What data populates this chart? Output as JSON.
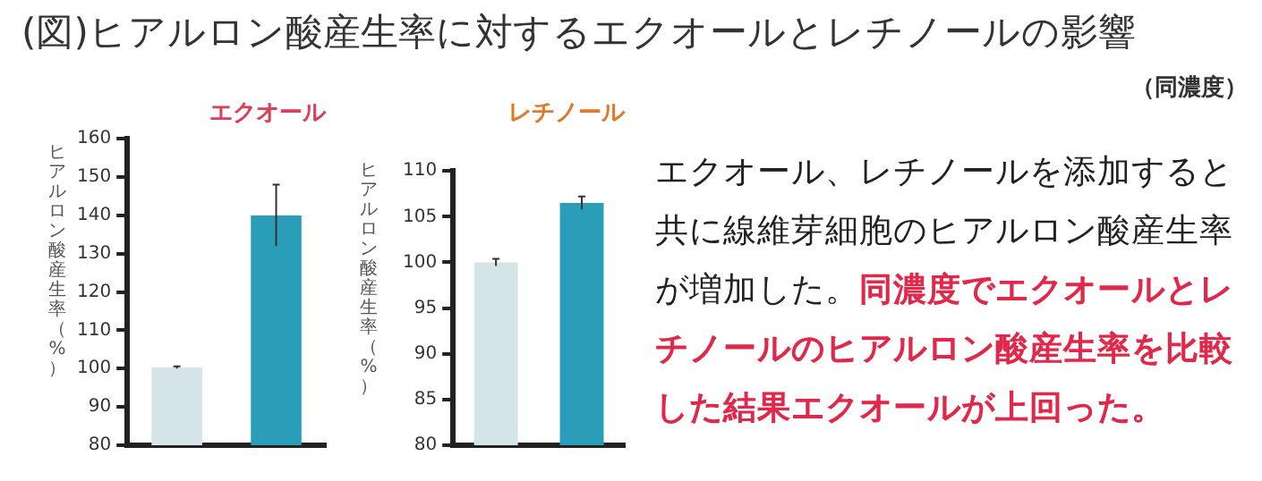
{
  "chart_data": [
    {
      "type": "other",
      "title": "(図)ヒアルロン酸産生率に対するエクオールとレチノールの影響",
      "subtitle": "（同濃度）"
    },
    {
      "type": "bar",
      "title": "エクオール",
      "ylabel": "ヒアルロン酸産生率（%）",
      "categories": [
        null,
        null
      ],
      "values": [
        100.3,
        140
      ],
      "errors": [
        0.3,
        8
      ],
      "colors": [
        "#d5e4e6",
        "#2a9db8"
      ],
      "ylim": [
        80,
        160
      ],
      "yticks": [
        80,
        90,
        100,
        110,
        120,
        130,
        140,
        150,
        160
      ],
      "tick_labels": "y",
      "grid": false,
      "legend": false
    },
    {
      "type": "bar",
      "title": "レチノール",
      "ylabel": "ヒアルロン酸産生率（%）",
      "categories": [
        null,
        null
      ],
      "values": [
        100,
        106.5
      ],
      "errors": [
        0.4,
        0.7
      ],
      "colors": [
        "#d5e4e6",
        "#2a9db8"
      ],
      "ylim": [
        80,
        110
      ],
      "yticks": [
        80,
        85,
        90,
        95,
        100,
        105,
        110
      ],
      "tick_labels": "y",
      "grid": false,
      "legend": false
    },
    {
      "type": "other",
      "annotations": [
        "エクオール、レチノールを添加すると共に線維芽細胞のヒアルロン酸産生率が増加した。",
        "同濃度でエクオールとレチノールのヒアルロン酸産生率を比較した結果エクオールが上回った。"
      ]
    }
  ]
}
